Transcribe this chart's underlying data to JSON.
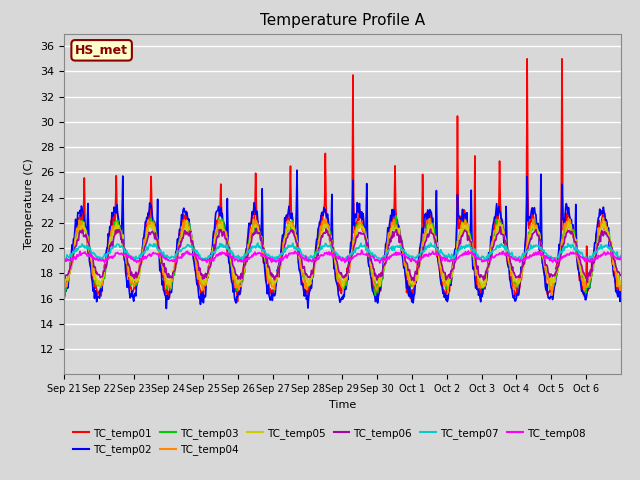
{
  "title": "Temperature Profile A",
  "xlabel": "Time",
  "ylabel": "Temperature (C)",
  "ylim": [
    10,
    37
  ],
  "yticks": [
    12,
    14,
    16,
    18,
    20,
    22,
    24,
    26,
    28,
    30,
    32,
    34,
    36
  ],
  "annotation": "HS_met",
  "annotation_color": "#8B0000",
  "annotation_bg": "#FFFFCC",
  "fig_bg": "#D8D8D8",
  "plot_bg": "#D8D8D8",
  "series_colors": {
    "TC_temp01": "#FF0000",
    "TC_temp02": "#0000FF",
    "TC_temp03": "#00CC00",
    "TC_temp04": "#FF8800",
    "TC_temp05": "#CCCC00",
    "TC_temp06": "#AA00AA",
    "TC_temp07": "#00CCCC",
    "TC_temp08": "#FF00FF"
  },
  "x_tick_labels": [
    "Sep 21",
    "Sep 22",
    "Sep 23",
    "Sep 24",
    "Sep 25",
    "Sep 26",
    "Sep 27",
    "Sep 28",
    "Sep 29",
    "Sep 30",
    "Oct 1",
    "Oct 2",
    "Oct 3",
    "Oct 4",
    "Oct 5",
    "Oct 6"
  ],
  "num_days": 16,
  "points_per_day": 48,
  "linewidth": 1.2
}
